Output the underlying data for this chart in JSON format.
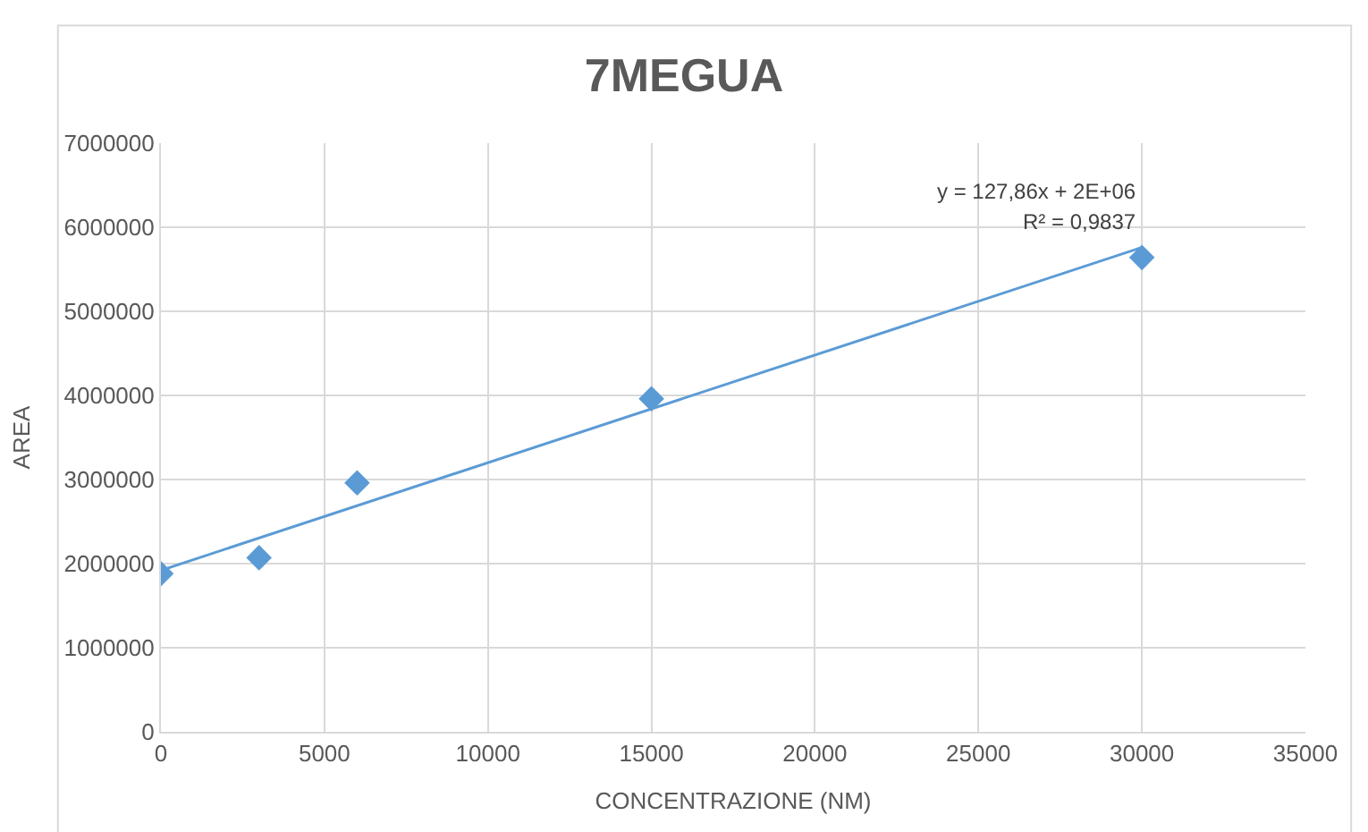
{
  "chart_data": {
    "type": "scatter",
    "title": "7MEGUA",
    "xlabel": "CONCENTRAZIONE (NM)",
    "ylabel": "AREA",
    "x": [
      0,
      3000,
      6000,
      15000,
      30000
    ],
    "series": [
      {
        "color": "#5b9bd5",
        "values": [
          1880000,
          2070000,
          2960000,
          3960000,
          5640000
        ],
        "marker": "diamond"
      },
      {
        "type": "line",
        "color": "#5b9bd5",
        "x": [
          0,
          30000
        ],
        "values": [
          1920000,
          5760000
        ],
        "marker": "none",
        "line_style": "solid"
      }
    ],
    "xlim": [
      0,
      35000
    ],
    "xticks": [
      0,
      5000,
      10000,
      15000,
      20000,
      25000,
      30000,
      35000
    ],
    "ylim": [
      0,
      7000000
    ],
    "yticks": [
      0,
      1000000,
      2000000,
      3000000,
      4000000,
      5000000,
      6000000,
      7000000
    ],
    "grid": true,
    "annotations": [
      "y = 127,86x + 2E+06",
      "R² = 0,9837"
    ]
  }
}
